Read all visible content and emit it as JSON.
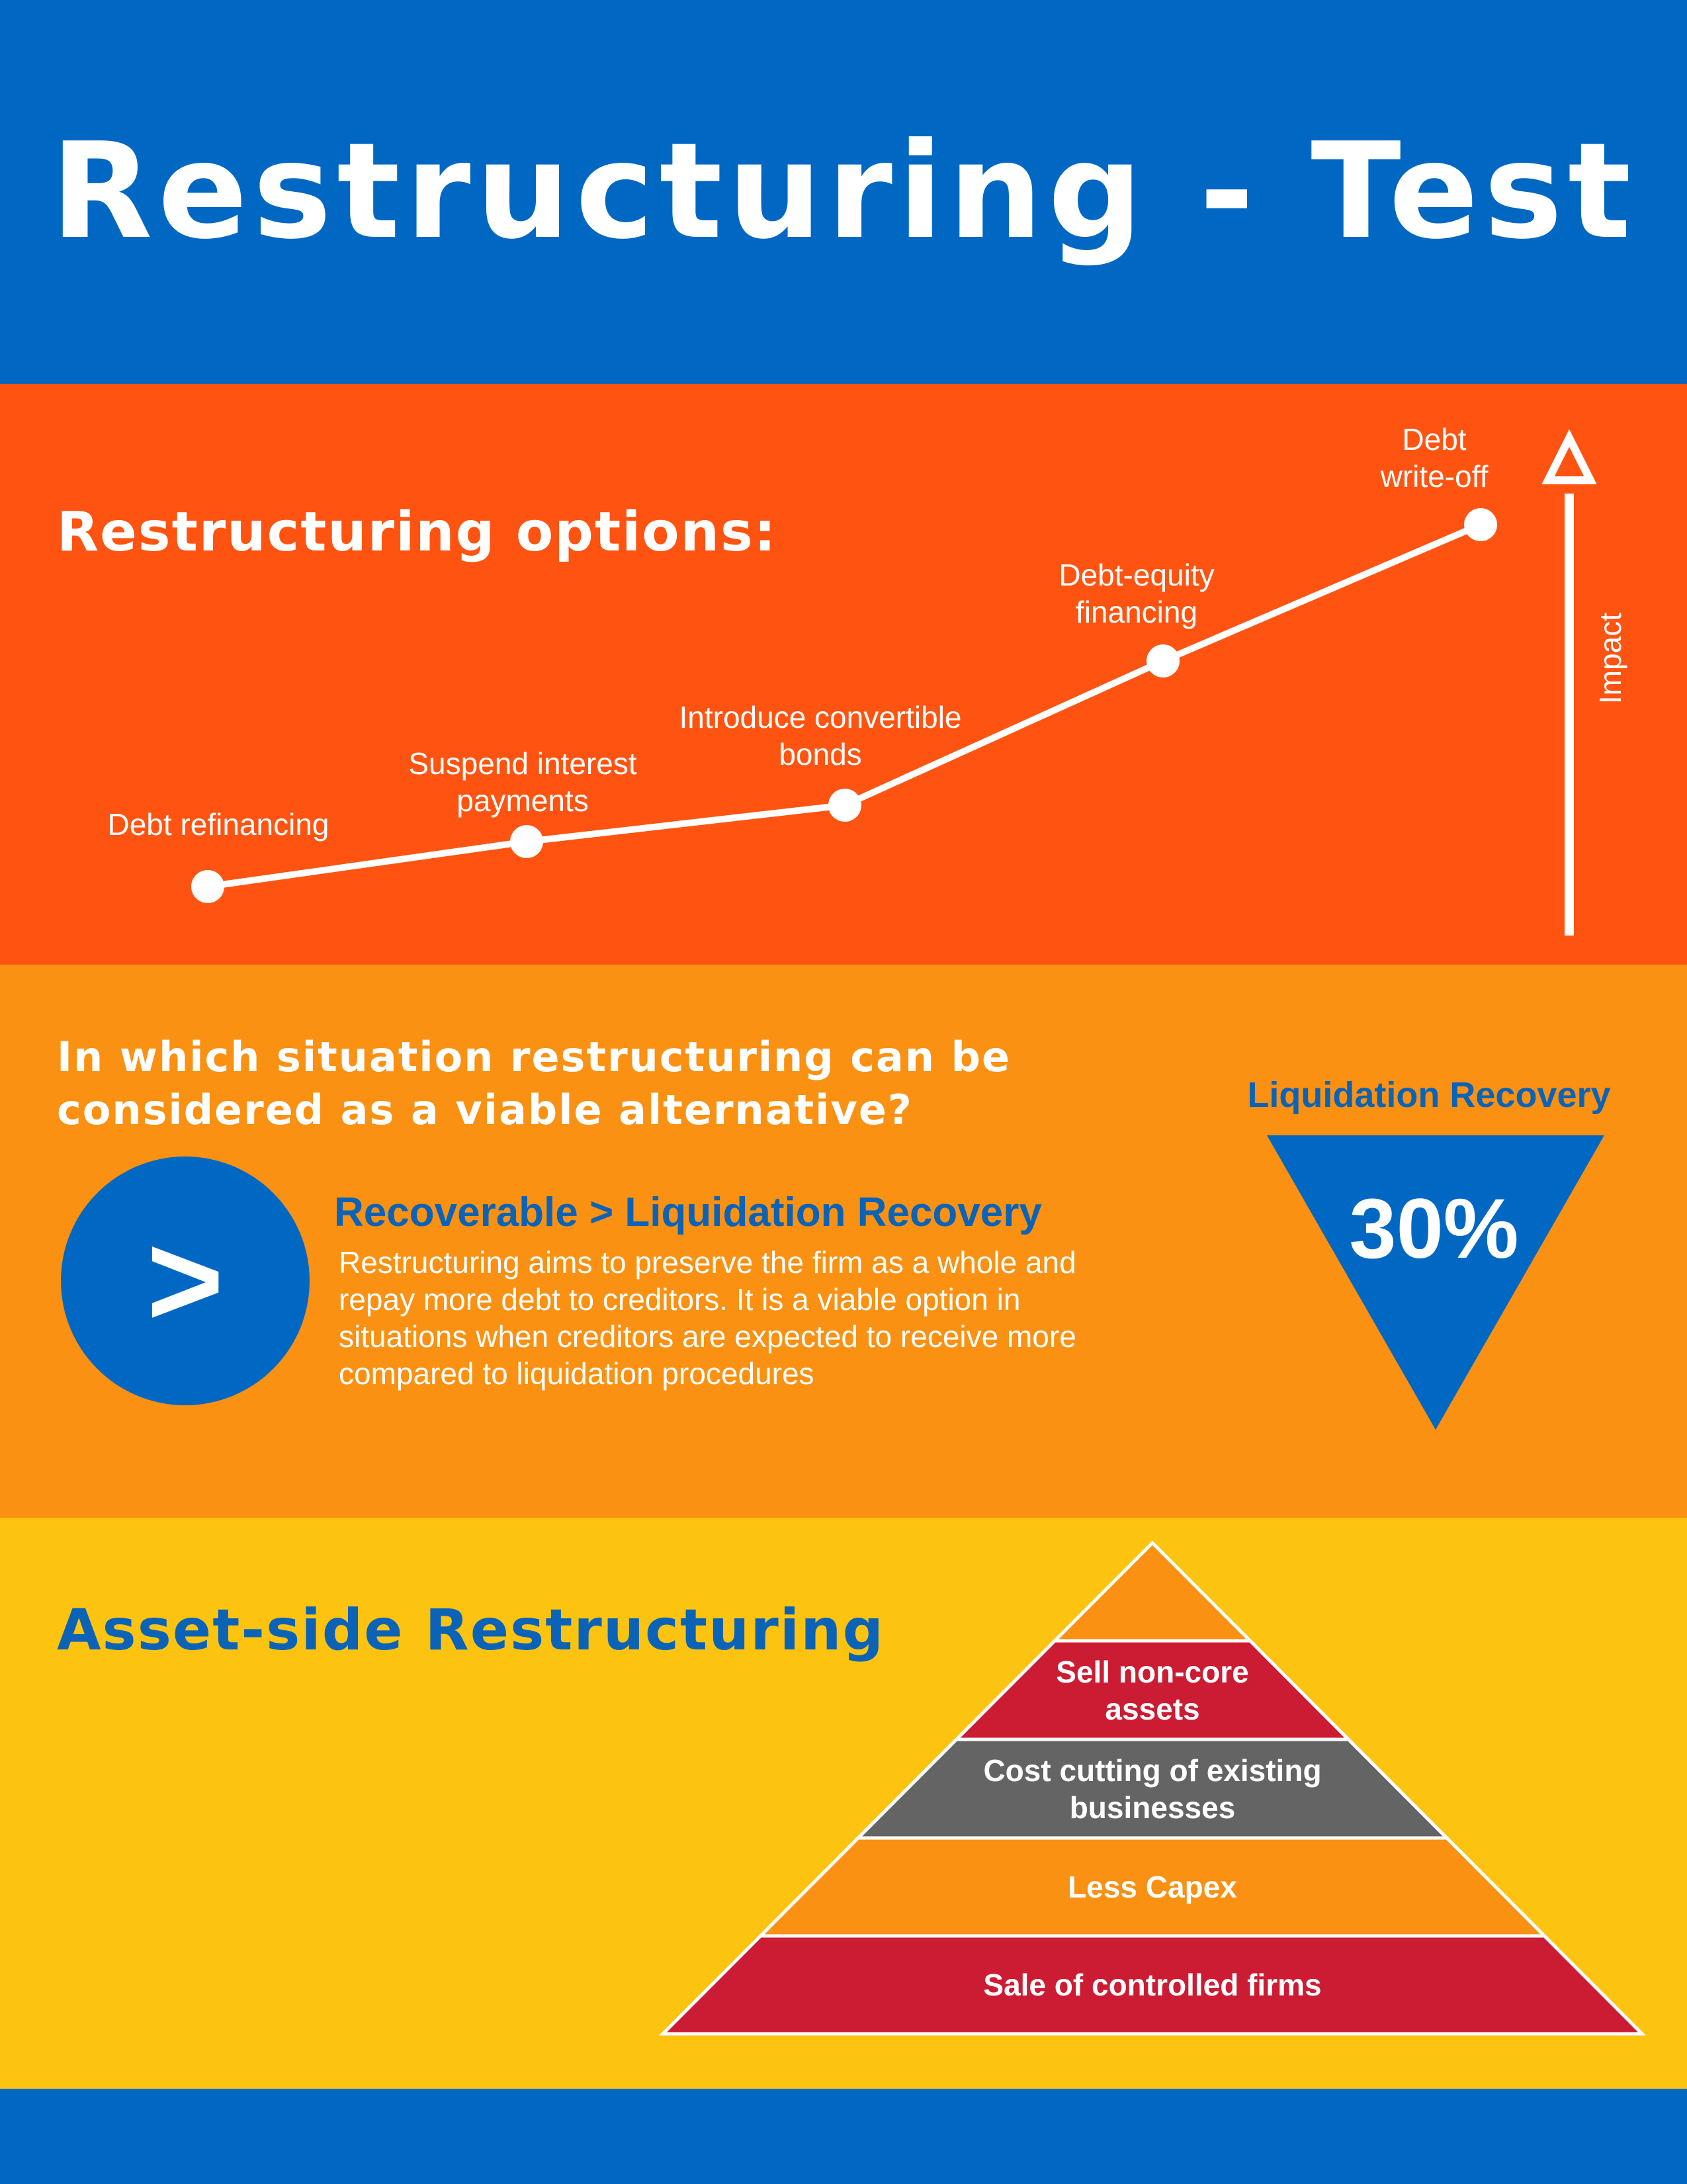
{
  "header": {
    "title": "Restructuring - Test"
  },
  "options_section": {
    "heading": "Restructuring options:",
    "axis_label": "Impact",
    "steps": [
      {
        "label_lines": [
          "Debt refinancing"
        ]
      },
      {
        "label_lines": [
          "Suspend interest",
          "payments"
        ]
      },
      {
        "label_lines": [
          "Introduce convertible",
          "bonds"
        ]
      },
      {
        "label_lines": [
          "Debt-equity",
          "financing"
        ]
      },
      {
        "label_lines": [
          "Debt",
          "write-off"
        ]
      }
    ]
  },
  "viable_section": {
    "question": "In which situation restructuring can be considered as a viable alternative?",
    "symbol": ">",
    "recover_title": "Recoverable > Liquidation Recovery",
    "recover_body": "Restructuring aims to preserve the firm as a whole and repay more debt to creditors. It is a viable option in situations when creditors are expected to receive more compared to liquidation procedures",
    "liquidation_label": "Liquidation Recovery",
    "liquidation_value": "30%"
  },
  "asset_section": {
    "heading": "Asset-side Restructuring",
    "pyramid_levels": [
      {
        "label": "",
        "color": "#FA9112"
      },
      {
        "label": "Sell non-core assets",
        "color": "#CC1C33"
      },
      {
        "label": "Cost cutting of existing businesses",
        "color": "#646464"
      },
      {
        "label": "Less Capex",
        "color": "#FA9112"
      },
      {
        "label": "Sale of controlled firms",
        "color": "#CC1C33"
      }
    ]
  },
  "colors": {
    "blue": "#0068C3",
    "orange_red": "#FF5411",
    "orange": "#FA9112",
    "yellow": "#FCC411",
    "heading_blue": "#0B63B8",
    "red": "#CC1C33",
    "gray": "#646464",
    "white": "#FFFFFF"
  }
}
